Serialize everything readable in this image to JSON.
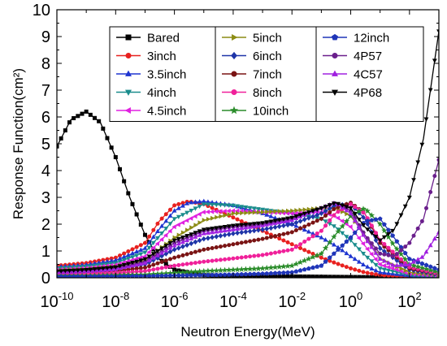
{
  "chart_data": {
    "type": "line",
    "title": "",
    "xlabel": "Neutron Energy(MeV)",
    "ylabel": "Response Function(cm²)",
    "xscale": "log",
    "xlim": [
      1e-10,
      1000
    ],
    "ylim": [
      0,
      10
    ],
    "x_ticks": [
      {
        "base": "10",
        "exp": "-10"
      },
      {
        "base": "10",
        "exp": "-8"
      },
      {
        "base": "10",
        "exp": "-6"
      },
      {
        "base": "10",
        "exp": "-4"
      },
      {
        "base": "10",
        "exp": "-2"
      },
      {
        "base": "10",
        "exp": "0"
      },
      {
        "base": "10",
        "exp": "2"
      }
    ],
    "y_ticks": [
      "0",
      "1",
      "2",
      "3",
      "4",
      "5",
      "6",
      "7",
      "8",
      "9",
      "10"
    ],
    "legend_position": "top",
    "grid": false,
    "series": [
      {
        "name": "Bared",
        "color": "#000000",
        "marker": "square",
        "x": [
          1e-10,
          3e-10,
          1e-09,
          3e-09,
          1e-08,
          3e-08,
          1e-07,
          3e-07,
          1e-06,
          1e-05,
          0.0001,
          0.001,
          0.01,
          0.1,
          1,
          10,
          100,
          1000
        ],
        "y": [
          4.9,
          5.9,
          6.2,
          5.8,
          4.5,
          3.0,
          1.6,
          0.7,
          0.3,
          0.1,
          0.06,
          0.05,
          0.05,
          0.04,
          0.03,
          0.02,
          0.01,
          0.01
        ]
      },
      {
        "name": "3inch",
        "color": "#e8211f",
        "marker": "circle",
        "x": [
          1e-10,
          1e-09,
          1e-08,
          1e-07,
          3e-07,
          1e-06,
          3e-06,
          1e-05,
          0.0001,
          0.001,
          0.01,
          0.1,
          0.3,
          1,
          3,
          10,
          100,
          1000
        ],
        "y": [
          0.45,
          0.55,
          0.75,
          1.3,
          2.1,
          2.7,
          2.85,
          2.75,
          2.25,
          1.75,
          1.25,
          0.75,
          0.55,
          0.35,
          0.2,
          0.1,
          0.05,
          0.05
        ]
      },
      {
        "name": "3.5inch",
        "color": "#1f35d0",
        "marker": "triangle-up",
        "x": [
          1e-10,
          1e-09,
          1e-08,
          1e-07,
          3e-07,
          1e-06,
          3e-06,
          1e-05,
          0.0001,
          0.001,
          0.01,
          0.1,
          0.3,
          1,
          3,
          10,
          100,
          1000
        ],
        "y": [
          0.4,
          0.48,
          0.65,
          1.1,
          1.8,
          2.5,
          2.8,
          2.85,
          2.7,
          2.4,
          2.0,
          1.5,
          1.2,
          0.8,
          0.45,
          0.2,
          0.08,
          0.05
        ]
      },
      {
        "name": "4inch",
        "color": "#1a8c8c",
        "marker": "triangle-down",
        "x": [
          1e-10,
          1e-09,
          1e-08,
          1e-07,
          1e-06,
          1e-05,
          0.0001,
          0.001,
          0.01,
          0.1,
          0.3,
          1,
          3,
          10,
          100,
          1000
        ],
        "y": [
          0.35,
          0.42,
          0.55,
          0.95,
          2.2,
          2.75,
          2.7,
          2.55,
          2.4,
          2.2,
          1.9,
          1.4,
          0.85,
          0.35,
          0.1,
          0.05
        ]
      },
      {
        "name": "4.5inch",
        "color": "#e020e0",
        "marker": "triangle-left",
        "x": [
          1e-10,
          1e-09,
          1e-08,
          1e-07,
          1e-06,
          1e-05,
          0.0001,
          0.001,
          0.01,
          0.1,
          0.3,
          1,
          3,
          10,
          100,
          1000
        ],
        "y": [
          0.3,
          0.36,
          0.48,
          0.8,
          1.9,
          2.45,
          2.5,
          2.45,
          2.4,
          2.45,
          2.3,
          1.9,
          1.2,
          0.5,
          0.15,
          0.08
        ]
      },
      {
        "name": "5inch",
        "color": "#8c8c14",
        "marker": "triangle-right",
        "x": [
          1e-10,
          1e-09,
          1e-08,
          1e-07,
          1e-06,
          1e-05,
          0.0001,
          0.001,
          0.01,
          0.1,
          0.3,
          1,
          3,
          10,
          100,
          1000
        ],
        "y": [
          0.28,
          0.32,
          0.42,
          0.65,
          1.5,
          2.15,
          2.4,
          2.45,
          2.5,
          2.6,
          2.6,
          2.3,
          1.6,
          0.7,
          0.2,
          0.1
        ]
      },
      {
        "name": "6inch",
        "color": "#1f35a8",
        "marker": "diamond",
        "x": [
          1e-10,
          1e-09,
          1e-08,
          1e-07,
          1e-06,
          1e-05,
          0.0001,
          0.001,
          0.01,
          0.1,
          0.3,
          1,
          3,
          10,
          100,
          1000
        ],
        "y": [
          0.22,
          0.25,
          0.32,
          0.5,
          1.05,
          1.45,
          1.65,
          1.8,
          2.0,
          2.4,
          2.7,
          2.75,
          2.2,
          1.1,
          0.3,
          0.12
        ]
      },
      {
        "name": "7inch",
        "color": "#7a1414",
        "marker": "circle",
        "x": [
          1e-10,
          1e-09,
          1e-08,
          1e-07,
          1e-06,
          1e-05,
          0.0001,
          0.001,
          0.01,
          0.1,
          0.3,
          1,
          3,
          10,
          100,
          1000
        ],
        "y": [
          0.18,
          0.2,
          0.25,
          0.38,
          0.75,
          1.05,
          1.25,
          1.45,
          1.7,
          2.2,
          2.6,
          2.8,
          2.4,
          1.3,
          0.35,
          0.15
        ]
      },
      {
        "name": "8inch",
        "color": "#f0209a",
        "marker": "circle",
        "x": [
          1e-10,
          1e-09,
          1e-08,
          1e-07,
          1e-06,
          1e-05,
          0.0001,
          0.001,
          0.01,
          0.1,
          0.3,
          1,
          3,
          10,
          100,
          1000
        ],
        "y": [
          0.14,
          0.15,
          0.18,
          0.25,
          0.45,
          0.6,
          0.72,
          0.85,
          1.05,
          1.75,
          2.4,
          2.75,
          2.4,
          1.4,
          0.4,
          0.15
        ]
      },
      {
        "name": "10inch",
        "color": "#2a8c2a",
        "marker": "star",
        "x": [
          1e-10,
          1e-09,
          1e-08,
          1e-07,
          1e-06,
          1e-05,
          0.0001,
          0.001,
          0.01,
          0.1,
          0.3,
          1,
          3,
          10,
          30,
          100,
          1000
        ],
        "y": [
          0.08,
          0.08,
          0.1,
          0.12,
          0.18,
          0.25,
          0.3,
          0.35,
          0.45,
          0.9,
          1.6,
          2.3,
          2.6,
          2.0,
          1.2,
          0.5,
          0.2
        ]
      },
      {
        "name": "12inch",
        "color": "#1f35b8",
        "marker": "pentagon",
        "x": [
          1e-10,
          1e-09,
          1e-08,
          1e-07,
          1e-06,
          1e-05,
          0.0001,
          0.001,
          0.01,
          0.1,
          1,
          3,
          10,
          30,
          100,
          1000
        ],
        "y": [
          0.04,
          0.04,
          0.05,
          0.06,
          0.08,
          0.1,
          0.12,
          0.15,
          0.2,
          0.45,
          1.5,
          2.1,
          2.2,
          1.5,
          0.7,
          0.3
        ]
      },
      {
        "name": "4P57",
        "color": "#6a1f8c",
        "marker": "circle",
        "x": [
          1e-10,
          1e-09,
          1e-08,
          1e-07,
          1e-06,
          1e-05,
          0.0001,
          0.001,
          0.01,
          0.1,
          0.3,
          1,
          3,
          10,
          30,
          100,
          300,
          1000
        ],
        "y": [
          0.22,
          0.26,
          0.35,
          0.6,
          1.3,
          1.75,
          1.9,
          2.0,
          2.2,
          2.6,
          2.8,
          2.5,
          1.6,
          0.9,
          0.8,
          1.3,
          2.2,
          4.4
        ]
      },
      {
        "name": "4C57",
        "color": "#a020e0",
        "marker": "triangle-up",
        "x": [
          1e-10,
          1e-09,
          1e-08,
          1e-07,
          1e-06,
          1e-05,
          0.0001,
          0.001,
          0.01,
          0.1,
          0.3,
          1,
          3,
          10,
          30,
          100,
          300,
          1000
        ],
        "y": [
          0.2,
          0.24,
          0.32,
          0.55,
          1.2,
          1.65,
          1.8,
          1.95,
          2.15,
          2.6,
          2.8,
          2.4,
          1.5,
          0.7,
          0.45,
          0.5,
          0.8,
          1.7
        ]
      },
      {
        "name": "4P68",
        "color": "#000000",
        "marker": "triangle-down",
        "x": [
          1e-10,
          1e-09,
          1e-08,
          1e-07,
          1e-06,
          1e-05,
          0.0001,
          0.001,
          0.01,
          0.1,
          0.3,
          1,
          3,
          10,
          30,
          100,
          300,
          1000
        ],
        "y": [
          0.25,
          0.3,
          0.4,
          0.7,
          1.4,
          1.8,
          1.95,
          2.05,
          2.25,
          2.6,
          2.8,
          2.6,
          1.9,
          1.4,
          1.8,
          3.0,
          5.2,
          9.2
        ]
      }
    ]
  }
}
